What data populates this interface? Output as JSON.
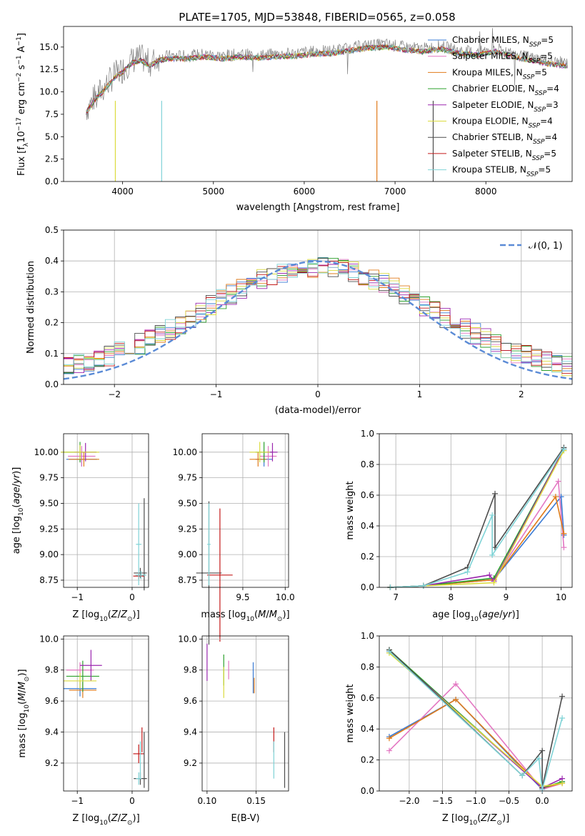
{
  "figure": {
    "title": "PLATE=1705, MJD=53848, FIBERID=0565, z=0.058"
  },
  "series": [
    {
      "name": "Chabrier MILES",
      "nssp": "5",
      "color": "#3a7bd5"
    },
    {
      "name": "Salpeter MILES",
      "nssp": "5",
      "color": "#e377c2"
    },
    {
      "name": "Kroupa MILES",
      "nssp": "5",
      "color": "#e07b1a"
    },
    {
      "name": "Chabrier ELODIE",
      "nssp": "4",
      "color": "#2ca02c"
    },
    {
      "name": "Salpeter ELODIE",
      "nssp": "3",
      "color": "#9b27af"
    },
    {
      "name": "Kroupa ELODIE",
      "nssp": "4",
      "color": "#dbdb3d"
    },
    {
      "name": "Chabrier STELIB",
      "nssp": "4",
      "color": "#4d4d4d"
    },
    {
      "name": "Salpeter STELIB",
      "nssp": "5",
      "color": "#c41a1a"
    },
    {
      "name": "Kroupa STELIB",
      "nssp": "5",
      "color": "#7fd3d6"
    }
  ],
  "chart_data": [
    {
      "id": "spectrum",
      "type": "line",
      "title": "PLATE=1705, MJD=53848, FIBERID=0565, z=0.058",
      "xlabel": "wavelength [Angstrom, rest frame]",
      "ylabel": "Flux [f_λ 10^-17 erg cm^-2 s^-1 A^-1]",
      "xlim": [
        3350,
        8950
      ],
      "ylim": [
        0,
        17.3
      ],
      "xticks": [
        4000,
        5000,
        6000,
        7000,
        8000
      ],
      "yticks": [
        "0.0",
        "2.5",
        "5.0",
        "7.5",
        "10.0",
        "12.5",
        "15.0"
      ],
      "legend": "right",
      "data_curve": {
        "x": [
          3600,
          3700,
          3800,
          3900,
          4000,
          4100,
          4200,
          4300,
          4400,
          4500,
          4700,
          4900,
          5100,
          5300,
          5500,
          5700,
          5900,
          6100,
          6300,
          6500,
          6700,
          6900,
          7100,
          7300,
          7500,
          7700,
          7900,
          8100,
          8300,
          8500,
          8700,
          8900
        ],
        "y": [
          8.0,
          9.5,
          10.5,
          11.8,
          12.5,
          13.5,
          13.8,
          13.2,
          13.8,
          14.0,
          14.0,
          14.2,
          14.0,
          14.2,
          14.1,
          14.2,
          14.3,
          14.5,
          14.6,
          14.9,
          15.2,
          15.3,
          15.0,
          14.8,
          15.1,
          14.6,
          14.4,
          14.8,
          14.2,
          13.8,
          13.4,
          13.2
        ]
      }
    },
    {
      "id": "residuals",
      "type": "step",
      "xlabel": "(data-model)/error",
      "ylabel": "Normed distribution",
      "xlim": [
        -2.5,
        2.5
      ],
      "ylim": [
        0,
        0.5
      ],
      "xticks": [
        "−2",
        "−1",
        "0",
        "1",
        "2"
      ],
      "yticks": [
        "0.0",
        "0.1",
        "0.2",
        "0.3",
        "0.4",
        "0.5"
      ],
      "legend_label": "𝒩(0, 1)",
      "reference_curve": {
        "type": "gaussian",
        "mean": 0,
        "sigma": 1
      }
    },
    {
      "id": "age_vs_Z",
      "type": "errorbar",
      "xlabel": "Z [log10(Z/Z⊙)]",
      "ylabel": "age  [log10(age/yr)]",
      "xlim": [
        -1.25,
        0.3
      ],
      "ylim": [
        8.68,
        10.18
      ],
      "xticks": [
        "−1",
        "0"
      ],
      "yticks": [
        "8.75",
        "9.00",
        "9.25",
        "9.50",
        "9.75",
        "10.00"
      ],
      "points": [
        {
          "s": 0,
          "x": -0.92,
          "y": 9.93,
          "xe": 0.28,
          "ye": 0.07
        },
        {
          "s": 1,
          "x": -0.92,
          "y": 9.96,
          "xe": 0.25,
          "ye": 0.1
        },
        {
          "s": 2,
          "x": -0.88,
          "y": 9.93,
          "xe": 0.28,
          "ye": 0.07
        },
        {
          "s": 3,
          "x": -0.95,
          "y": 10.0,
          "xe": 0.3,
          "ye": 0.1
        },
        {
          "s": 4,
          "x": -0.85,
          "y": 10.0,
          "xe": 0.2,
          "ye": 0.09
        },
        {
          "s": 5,
          "x": -0.95,
          "y": 10.0,
          "xe": 0.35,
          "ye": 0.07
        },
        {
          "s": 6,
          "x": 0.15,
          "y": 8.82,
          "xe": 0.12,
          "ye": 0.05
        },
        {
          "s": 7,
          "x": 0.12,
          "y": 8.79,
          "xe": 0.1,
          "ye": 0.03
        },
        {
          "s": 8,
          "x": 0.12,
          "y": 9.1,
          "xe": 0.05,
          "ye": 0.4
        },
        {
          "s": 6,
          "x": 0.22,
          "y": 9.1,
          "xe": 0.0,
          "ye": 0.45
        },
        {
          "s": 8,
          "x": 0.16,
          "y": 8.8,
          "xe": 0.1,
          "ye": 0.04
        }
      ]
    },
    {
      "id": "age_vs_mass",
      "type": "errorbar",
      "xlabel": "mass [log10(M/M⊙)]",
      "ylabel": "",
      "xlim": [
        9.02,
        10.04
      ],
      "ylim": [
        8.68,
        10.18
      ],
      "xticks": [
        "9.5",
        "10.0"
      ],
      "yticks": [
        "8.75",
        "9.00",
        "9.25",
        "9.50",
        "9.75",
        "10.00"
      ],
      "points": [
        {
          "s": 0,
          "x": 9.75,
          "y": 9.93,
          "xe": 0.1,
          "ye": 0.07
        },
        {
          "s": 1,
          "x": 9.8,
          "y": 9.96,
          "xe": 0.1,
          "ye": 0.1
        },
        {
          "s": 2,
          "x": 9.68,
          "y": 9.93,
          "xe": 0.1,
          "ye": 0.07
        },
        {
          "s": 3,
          "x": 9.75,
          "y": 10.0,
          "xe": 0.1,
          "ye": 0.1
        },
        {
          "s": 4,
          "x": 9.85,
          "y": 10.0,
          "xe": 0.06,
          "ye": 0.09
        },
        {
          "s": 5,
          "x": 9.7,
          "y": 10.0,
          "xe": 0.12,
          "ye": 0.1
        },
        {
          "s": 6,
          "x": 9.1,
          "y": 8.82,
          "xe": 0.15,
          "ye": 0.7
        },
        {
          "s": 7,
          "x": 9.23,
          "y": 8.8,
          "xe": 0.15,
          "ye": 0.65
        },
        {
          "s": 8,
          "x": 9.1,
          "y": 9.1,
          "xe": 0.02,
          "ye": 0.4
        }
      ]
    },
    {
      "id": "weight_vs_age",
      "type": "line",
      "xlabel": "age  [log10(age/yr)]",
      "ylabel": "mass weight",
      "xlim": [
        6.7,
        10.2
      ],
      "ylim": [
        0,
        1.0
      ],
      "xticks": [
        "7",
        "8",
        "9",
        "10"
      ],
      "yticks": [
        "0.0",
        "0.2",
        "0.4",
        "0.6",
        "0.8",
        "1.0"
      ],
      "lines": [
        {
          "s": 0,
          "x": [
            6.9,
            7.5,
            8.78,
            10.0,
            10.05
          ],
          "y": [
            0.0,
            0.01,
            0.05,
            0.59,
            0.34
          ]
        },
        {
          "s": 1,
          "x": [
            6.9,
            7.5,
            8.78,
            9.95,
            10.05
          ],
          "y": [
            0.0,
            0.01,
            0.05,
            0.69,
            0.26
          ]
        },
        {
          "s": 2,
          "x": [
            6.9,
            7.5,
            8.78,
            9.9,
            10.05
          ],
          "y": [
            0.0,
            0.01,
            0.05,
            0.59,
            0.35
          ]
        },
        {
          "s": 3,
          "x": [
            6.9,
            7.5,
            8.78,
            10.05
          ],
          "y": [
            0.0,
            0.01,
            0.06,
            0.9
          ]
        },
        {
          "s": 4,
          "x": [
            6.9,
            7.5,
            8.7,
            8.78,
            10.05
          ],
          "y": [
            0.0,
            0.01,
            0.08,
            0.04,
            0.9
          ]
        },
        {
          "s": 5,
          "x": [
            6.9,
            7.5,
            8.78,
            10.05
          ],
          "y": [
            0.0,
            0.01,
            0.03,
            0.89
          ]
        },
        {
          "s": 6,
          "x": [
            6.9,
            7.5,
            8.3,
            8.8,
            8.8,
            10.05
          ],
          "y": [
            0.0,
            0.01,
            0.13,
            0.61,
            0.26,
            0.91
          ]
        },
        {
          "s": 8,
          "x": [
            6.9,
            7.5,
            8.3,
            8.75,
            8.75,
            10.05
          ],
          "y": [
            0.0,
            0.01,
            0.1,
            0.47,
            0.21,
            0.9
          ]
        }
      ]
    },
    {
      "id": "mass_vs_Z",
      "type": "errorbar",
      "xlabel": "Z [log10(Z/Z⊙)]",
      "ylabel": "mass [log10(M/M⊙)]",
      "xlim": [
        -1.25,
        0.3
      ],
      "ylim": [
        9.02,
        10.02
      ],
      "xticks": [
        "−1",
        "0"
      ],
      "yticks": [
        "9.2",
        "9.4",
        "9.6",
        "9.8",
        "10.0"
      ],
      "points": [
        {
          "s": 0,
          "x": -0.95,
          "y": 9.68,
          "xe": 0.3,
          "ye": 0.05
        },
        {
          "s": 1,
          "x": -0.95,
          "y": 9.8,
          "xe": 0.25,
          "ye": 0.05
        },
        {
          "s": 2,
          "x": -0.9,
          "y": 9.67,
          "xe": 0.25,
          "ye": 0.05
        },
        {
          "s": 3,
          "x": -0.9,
          "y": 9.76,
          "xe": 0.3,
          "ye": 0.1
        },
        {
          "s": 4,
          "x": -0.75,
          "y": 9.83,
          "xe": 0.2,
          "ye": 0.1
        },
        {
          "s": 5,
          "x": -0.95,
          "y": 9.73,
          "xe": 0.3,
          "ye": 0.05
        },
        {
          "s": 6,
          "x": 0.15,
          "y": 9.1,
          "xe": 0.12,
          "ye": 0.04
        },
        {
          "s": 7,
          "x": 0.12,
          "y": 9.26,
          "xe": 0.1,
          "ye": 0.06
        },
        {
          "s": 8,
          "x": 0.12,
          "y": 9.1,
          "xe": 0.05,
          "ye": 0.04
        },
        {
          "s": 6,
          "x": 0.22,
          "y": 9.22,
          "xe": 0.0,
          "ye": 0.18
        },
        {
          "s": 7,
          "x": 0.18,
          "y": 9.35,
          "xe": 0.0,
          "ye": 0.08
        },
        {
          "s": 8,
          "x": 0.15,
          "y": 9.22,
          "xe": 0.0,
          "ye": 0.12
        }
      ]
    },
    {
      "id": "mass_vs_EBV",
      "type": "errorbar",
      "xlabel": "E(B-V)",
      "ylabel": "",
      "xlim": [
        0.095,
        0.183
      ],
      "ylim": [
        9.02,
        10.02
      ],
      "xticks": [
        "0.10",
        "0.15"
      ],
      "yticks": [
        "9.2",
        "9.4",
        "9.6",
        "9.8",
        "10.0"
      ],
      "points": [
        {
          "s": 0,
          "x": 0.147,
          "y": 9.75,
          "xe": 0.0,
          "ye": 0.1
        },
        {
          "s": 1,
          "x": 0.122,
          "y": 9.8,
          "xe": 0.0,
          "ye": 0.06
        },
        {
          "s": 2,
          "x": 0.148,
          "y": 9.7,
          "xe": 0.0,
          "ye": 0.05
        },
        {
          "s": 3,
          "x": 0.117,
          "y": 9.8,
          "xe": 0.0,
          "ye": 0.1
        },
        {
          "s": 4,
          "x": 0.1,
          "y": 9.85,
          "xe": 0.0,
          "ye": 0.12
        },
        {
          "s": 5,
          "x": 0.117,
          "y": 9.72,
          "xe": 0.0,
          "ye": 0.1
        },
        {
          "s": 6,
          "x": 0.179,
          "y": 9.22,
          "xe": 0.0,
          "ye": 0.18
        },
        {
          "s": 7,
          "x": 0.168,
          "y": 9.35,
          "xe": 0.0,
          "ye": 0.08
        },
        {
          "s": 8,
          "x": 0.168,
          "y": 9.22,
          "xe": 0.0,
          "ye": 0.12
        }
      ]
    },
    {
      "id": "weight_vs_Z",
      "type": "line",
      "xlabel": "Z [log10(Z/Z⊙)]",
      "ylabel": "mass weight",
      "xlim": [
        -2.45,
        0.45
      ],
      "ylim": [
        0,
        1.0
      ],
      "xticks": [
        "−2.0",
        "−1.5",
        "−1.0",
        "−0.5",
        "0.0"
      ],
      "yticks": [
        "0.0",
        "0.2",
        "0.4",
        "0.6",
        "0.8",
        "1.0"
      ],
      "lines": [
        {
          "s": 0,
          "x": [
            -2.3,
            -1.3,
            0.0,
            0.3
          ],
          "y": [
            0.35,
            0.59,
            0.01,
            0.06
          ]
        },
        {
          "s": 1,
          "x": [
            -2.3,
            -1.3,
            0.0,
            0.3
          ],
          "y": [
            0.26,
            0.69,
            0.01,
            0.05
          ]
        },
        {
          "s": 2,
          "x": [
            -2.3,
            -1.3,
            0.0,
            0.3
          ],
          "y": [
            0.34,
            0.59,
            0.02,
            0.05
          ]
        },
        {
          "s": 3,
          "x": [
            -2.3,
            0.0,
            0.3
          ],
          "y": [
            0.91,
            0.02,
            0.06
          ]
        },
        {
          "s": 4,
          "x": [
            -2.3,
            0.0,
            0.3
          ],
          "y": [
            0.9,
            0.02,
            0.08
          ]
        },
        {
          "s": 5,
          "x": [
            -2.3,
            0.0,
            0.3
          ],
          "y": [
            0.89,
            0.03,
            0.05
          ]
        },
        {
          "s": 6,
          "x": [
            -2.3,
            -0.3,
            0.0,
            0.0,
            0.3
          ],
          "y": [
            0.91,
            0.1,
            0.26,
            0.02,
            0.61
          ]
        },
        {
          "s": 8,
          "x": [
            -2.3,
            -0.3,
            -0.05,
            0.0,
            0.3
          ],
          "y": [
            0.9,
            0.1,
            0.21,
            0.01,
            0.47
          ]
        }
      ]
    }
  ]
}
